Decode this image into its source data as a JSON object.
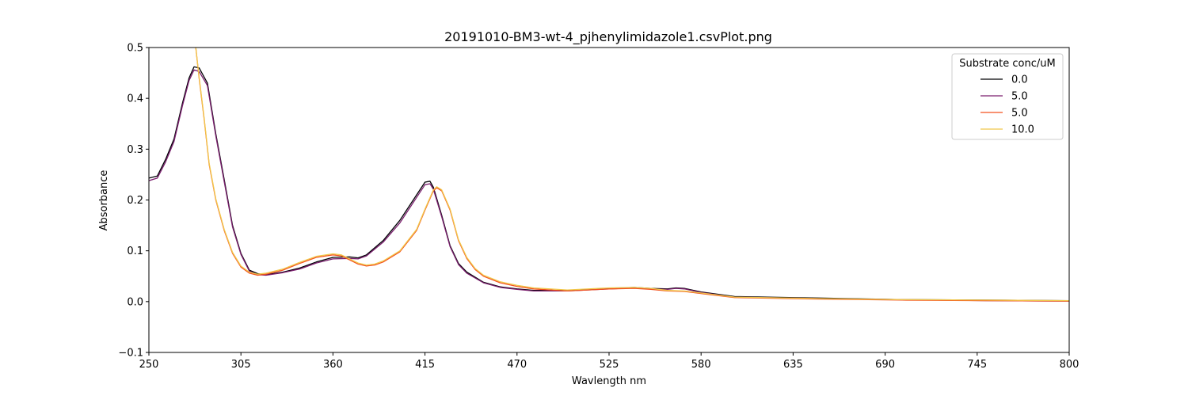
{
  "chart_data": {
    "type": "line",
    "title": "20191010-BM3-wt-4_pjhenylimidazole1.csvPlot.png",
    "xlabel": "Wavlength nm",
    "ylabel": "Absorbance",
    "xlim": [
      250,
      800
    ],
    "ylim": [
      -0.1,
      0.5
    ],
    "xticks": [
      250,
      305,
      360,
      415,
      470,
      525,
      580,
      635,
      690,
      745,
      800
    ],
    "xtick_labels": [
      "250",
      "305",
      "360",
      "415",
      "470",
      "525",
      "580",
      "635",
      "690",
      "745",
      "800"
    ],
    "yticks": [
      -0.1,
      0.0,
      0.1,
      0.2,
      0.3,
      0.4,
      0.5
    ],
    "ytick_labels": [
      "−0.1",
      "0.0",
      "0.1",
      "0.2",
      "0.3",
      "0.4",
      "0.5"
    ],
    "grid": false,
    "legend": {
      "title": "Substrate conc/uM",
      "placement": "top-right"
    },
    "series": [
      {
        "name": "0.0",
        "color": "#000004",
        "x": [
          250,
          255,
          260,
          265,
          270,
          274,
          277,
          280,
          285,
          290,
          295,
          300,
          305,
          310,
          315,
          320,
          330,
          340,
          350,
          360,
          370,
          375,
          380,
          390,
          400,
          410,
          415,
          418,
          420,
          425,
          430,
          435,
          440,
          450,
          460,
          470,
          480,
          500,
          525,
          540,
          550,
          560,
          565,
          570,
          580,
          600,
          650,
          700,
          750,
          800
        ],
        "y": [
          0.243,
          0.247,
          0.28,
          0.32,
          0.39,
          0.44,
          0.462,
          0.46,
          0.43,
          0.33,
          0.24,
          0.15,
          0.095,
          0.062,
          0.055,
          0.053,
          0.058,
          0.066,
          0.078,
          0.087,
          0.088,
          0.086,
          0.092,
          0.12,
          0.16,
          0.21,
          0.235,
          0.237,
          0.225,
          0.17,
          0.11,
          0.075,
          0.058,
          0.038,
          0.029,
          0.025,
          0.022,
          0.022,
          0.026,
          0.028,
          0.026,
          0.025,
          0.027,
          0.026,
          0.019,
          0.01,
          0.007,
          0.004,
          0.003,
          0.002
        ]
      },
      {
        "name": "5.0",
        "color": "#7a1d6d",
        "x": [
          250,
          255,
          260,
          265,
          270,
          274,
          277,
          280,
          285,
          290,
          295,
          300,
          305,
          310,
          315,
          320,
          330,
          340,
          350,
          360,
          370,
          375,
          380,
          390,
          400,
          410,
          415,
          418,
          420,
          425,
          430,
          435,
          440,
          450,
          460,
          470,
          480,
          500,
          525,
          540,
          550,
          560,
          565,
          570,
          580,
          600,
          650,
          700,
          750,
          800
        ],
        "y": [
          0.238,
          0.243,
          0.275,
          0.315,
          0.385,
          0.435,
          0.456,
          0.453,
          0.425,
          0.326,
          0.236,
          0.147,
          0.093,
          0.06,
          0.053,
          0.052,
          0.057,
          0.064,
          0.076,
          0.084,
          0.085,
          0.084,
          0.09,
          0.117,
          0.155,
          0.205,
          0.23,
          0.232,
          0.221,
          0.167,
          0.108,
          0.073,
          0.056,
          0.037,
          0.028,
          0.024,
          0.021,
          0.021,
          0.025,
          0.027,
          0.025,
          0.024,
          0.026,
          0.025,
          0.018,
          0.009,
          0.006,
          0.004,
          0.002,
          0.001
        ]
      },
      {
        "name": "5.0",
        "color": "#f3511e",
        "x": [
          278,
          280,
          283,
          286,
          290,
          295,
          300,
          305,
          310,
          315,
          320,
          330,
          340,
          350,
          360,
          365,
          370,
          375,
          380,
          385,
          390,
          400,
          410,
          415,
          420,
          422,
          425,
          430,
          435,
          440,
          445,
          450,
          460,
          470,
          480,
          500,
          525,
          540,
          550,
          560,
          570,
          580,
          600,
          650,
          700,
          750,
          800
        ],
        "y": [
          0.5,
          0.44,
          0.36,
          0.27,
          0.2,
          0.14,
          0.095,
          0.068,
          0.056,
          0.052,
          0.054,
          0.062,
          0.075,
          0.087,
          0.092,
          0.09,
          0.082,
          0.074,
          0.07,
          0.072,
          0.078,
          0.098,
          0.14,
          0.18,
          0.218,
          0.224,
          0.218,
          0.18,
          0.12,
          0.085,
          0.063,
          0.05,
          0.037,
          0.03,
          0.025,
          0.021,
          0.025,
          0.026,
          0.024,
          0.021,
          0.02,
          0.016,
          0.008,
          0.005,
          0.003,
          0.002,
          0.001
        ]
      },
      {
        "name": "10.0",
        "color": "#f1c84a",
        "x": [
          278,
          280,
          283,
          286,
          290,
          295,
          300,
          305,
          310,
          315,
          320,
          330,
          340,
          350,
          360,
          365,
          370,
          375,
          380,
          385,
          390,
          400,
          410,
          415,
          420,
          422,
          425,
          430,
          435,
          440,
          445,
          450,
          460,
          470,
          480,
          500,
          525,
          540,
          550,
          560,
          570,
          580,
          600,
          650,
          700,
          750,
          800
        ],
        "y": [
          0.5,
          0.442,
          0.362,
          0.272,
          0.202,
          0.142,
          0.097,
          0.07,
          0.058,
          0.054,
          0.056,
          0.064,
          0.077,
          0.089,
          0.094,
          0.092,
          0.084,
          0.076,
          0.072,
          0.074,
          0.08,
          0.1,
          0.142,
          0.182,
          0.22,
          0.226,
          0.22,
          0.182,
          0.122,
          0.087,
          0.065,
          0.052,
          0.039,
          0.032,
          0.027,
          0.023,
          0.027,
          0.028,
          0.026,
          0.022,
          0.021,
          0.017,
          0.009,
          0.006,
          0.004,
          0.003,
          0.002
        ]
      }
    ]
  }
}
